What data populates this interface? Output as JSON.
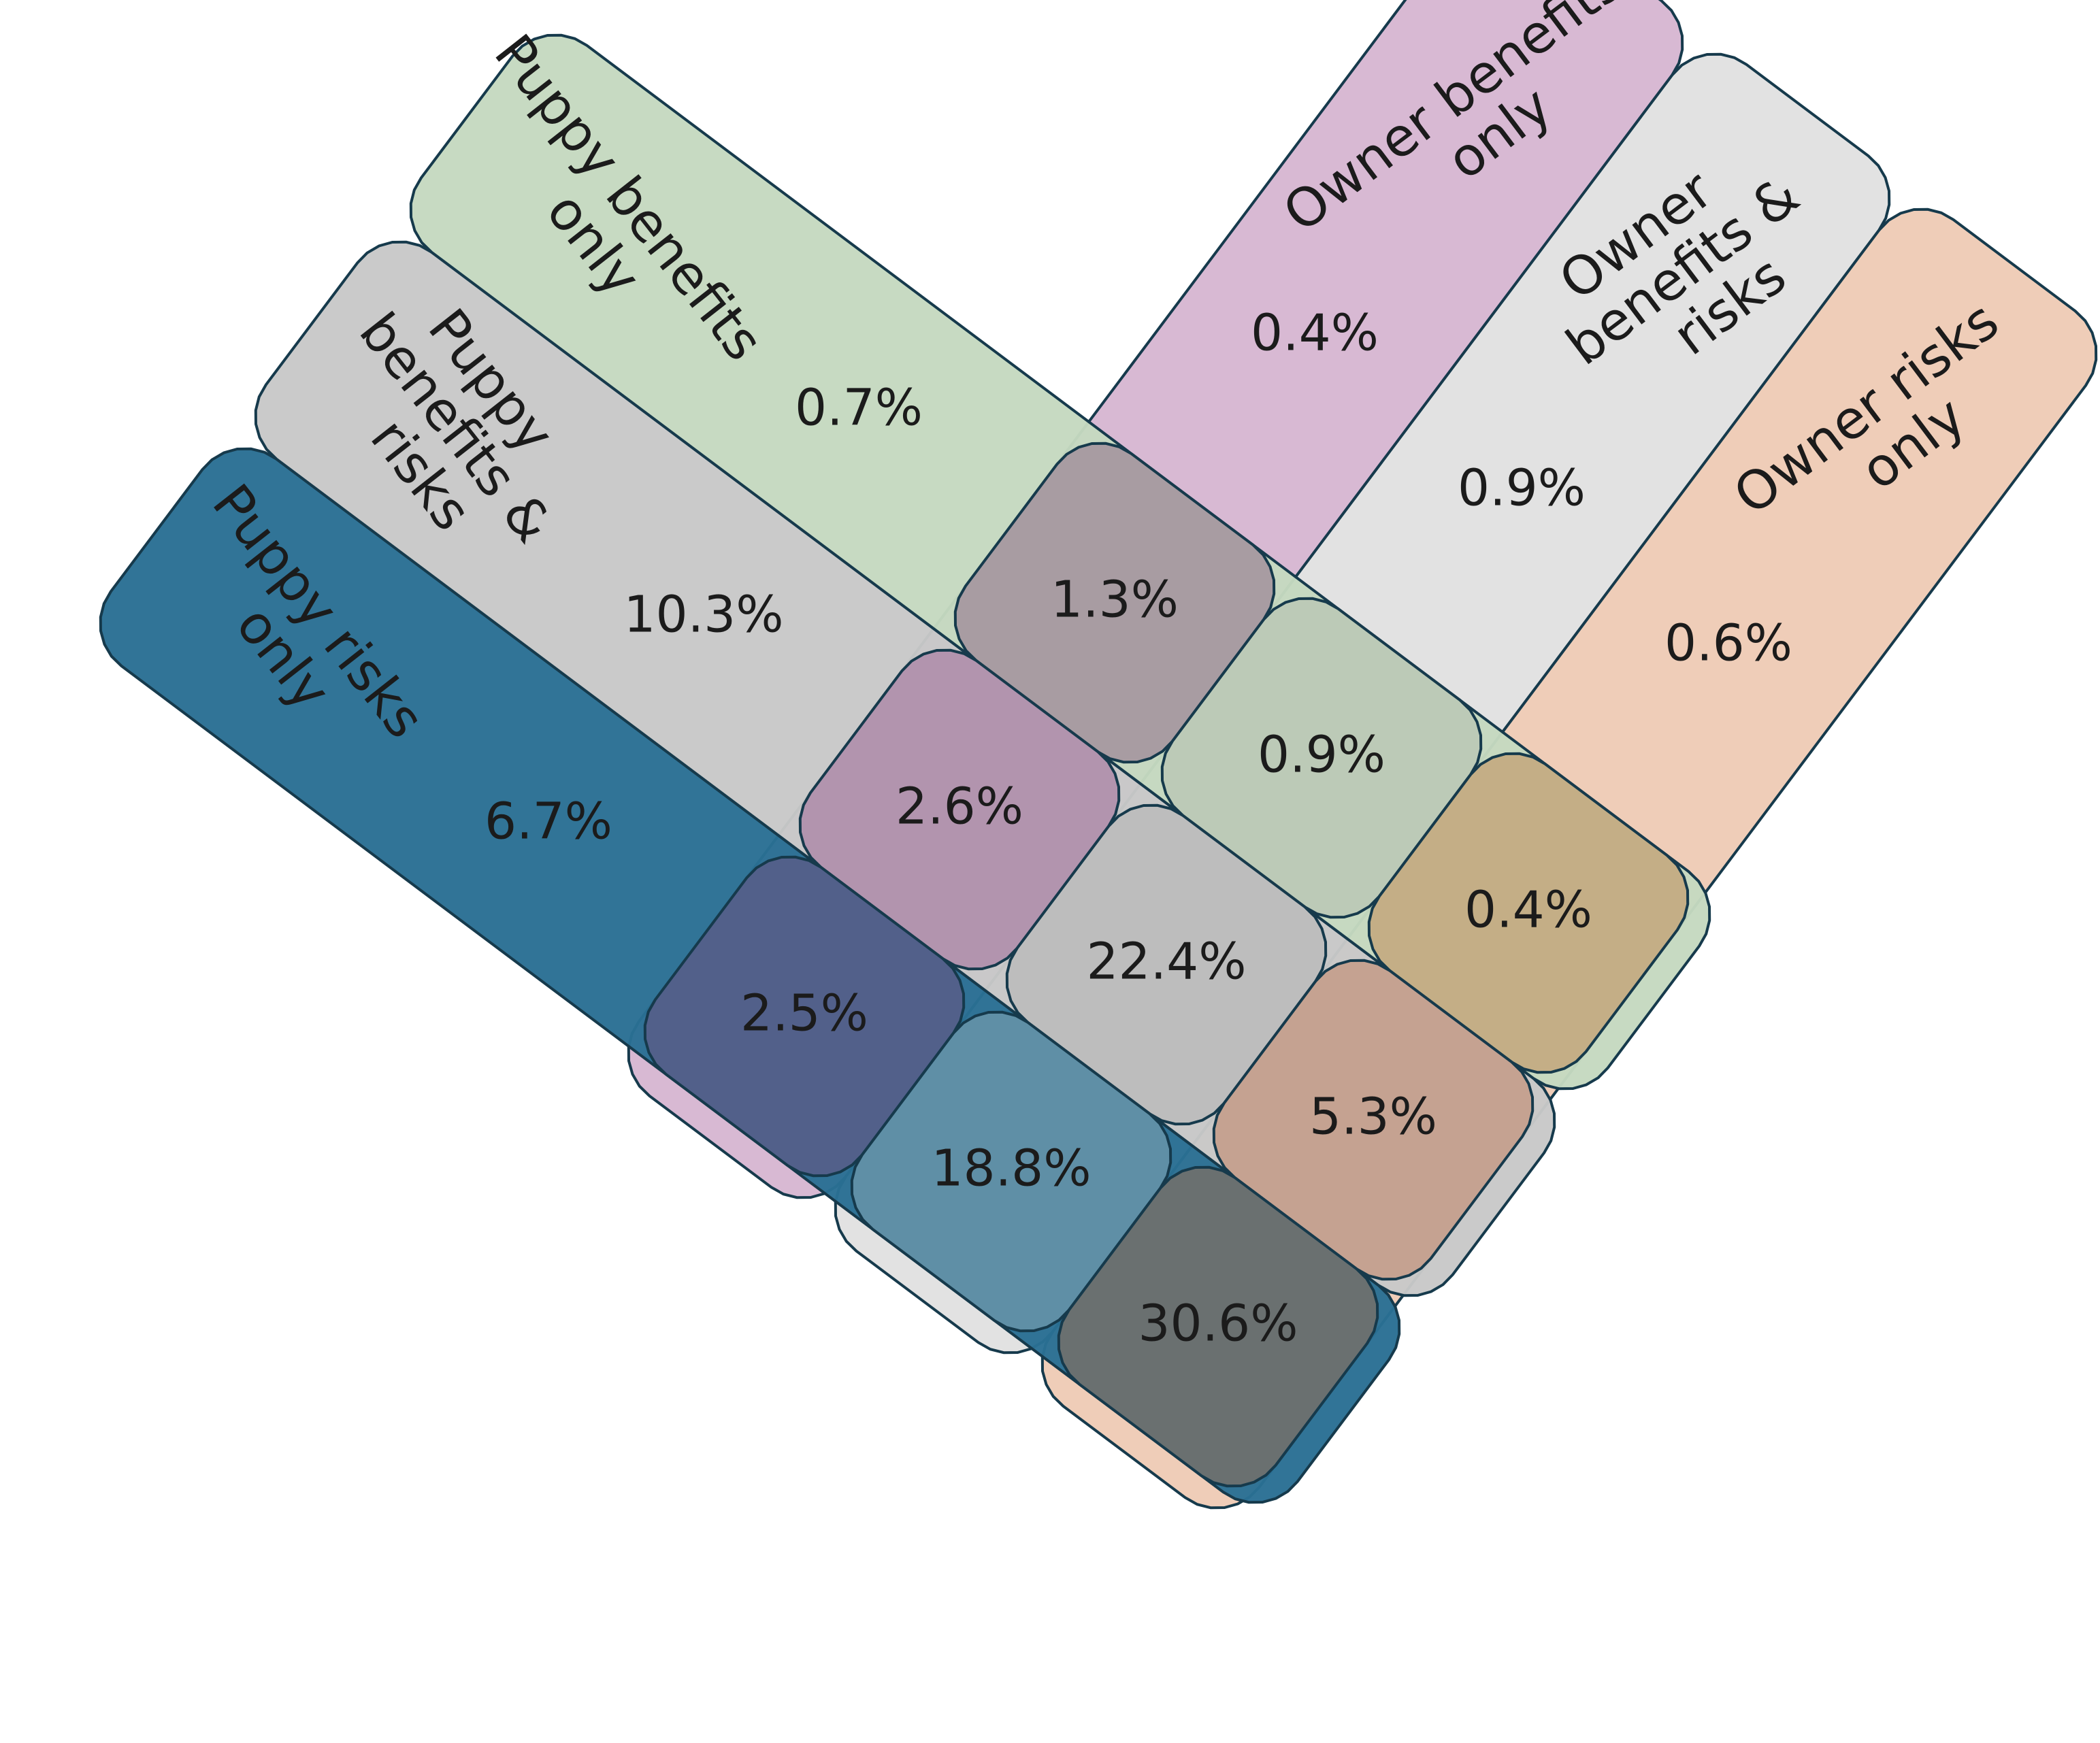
{
  "diagram": {
    "puppy_bands": [
      {
        "key": "p_risks",
        "label_lines": [
          "Puppy risks",
          "only"
        ],
        "color": "#2a6f94"
      },
      {
        "key": "p_both",
        "label_lines": [
          "Puppy",
          "benefits &",
          "risks"
        ],
        "color": "#c8c8c8"
      },
      {
        "key": "p_benefits",
        "label_lines": [
          "Puppy benefits",
          "only"
        ],
        "color": "#c5d9c0"
      }
    ],
    "owner_bands": [
      {
        "key": "o_benefits",
        "label_lines": [
          "Owner benefits",
          "only"
        ],
        "color": "#d8b9d3"
      },
      {
        "key": "o_both",
        "label_lines": [
          "Owner",
          "benefits &",
          "risks"
        ],
        "color": "#e2e2e2"
      },
      {
        "key": "o_risks",
        "label_lines": [
          "Owner risks",
          "only"
        ],
        "color": "#efcdb8"
      }
    ],
    "puppy_only_values": [
      "6.7%",
      "10.3%",
      "0.7%"
    ],
    "owner_only_values": [
      "0.4%",
      "0.9%",
      "0.6%"
    ],
    "cells": [
      {
        "puppy": "p_benefits",
        "owner": "o_benefits",
        "value": "1.3%",
        "color": "#a89ca2"
      },
      {
        "puppy": "p_benefits",
        "owner": "o_both",
        "value": "0.9%",
        "color": "#bccab7"
      },
      {
        "puppy": "p_benefits",
        "owner": "o_risks",
        "value": "0.4%",
        "color": "#c4ae86"
      },
      {
        "puppy": "p_both",
        "owner": "o_benefits",
        "value": "2.6%",
        "color": "#b294ae"
      },
      {
        "puppy": "p_both",
        "owner": "o_both",
        "value": "22.4%",
        "color": "#bdbdbd"
      },
      {
        "puppy": "p_both",
        "owner": "o_risks",
        "value": "5.3%",
        "color": "#c5a291"
      },
      {
        "puppy": "p_risks",
        "owner": "o_benefits",
        "value": "2.5%",
        "color": "#52608a"
      },
      {
        "puppy": "p_risks",
        "owner": "o_both",
        "value": "18.8%",
        "color": "#5f8fa6"
      },
      {
        "puppy": "p_risks",
        "owner": "o_risks",
        "value": "30.6%",
        "color": "#6a7070"
      }
    ]
  }
}
